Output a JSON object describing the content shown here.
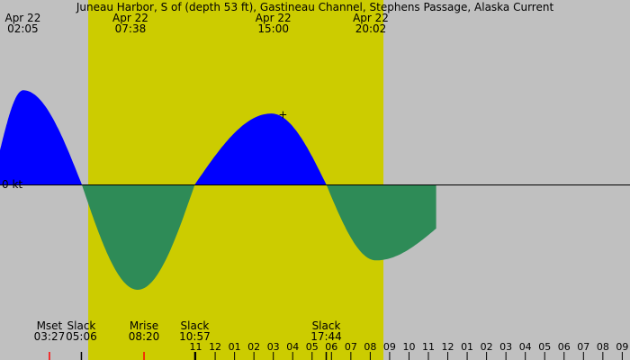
{
  "title": "Juneau Harbor, S of (depth 53 ft), Gastineau Channel, Stephens Passage, Alaska Current",
  "colors": {
    "background": "#c0c0c0",
    "daylight": "#cccc00",
    "flood": "#0000ff",
    "ebb": "#2e8b57",
    "zero_line": "#000000",
    "moon_tick": "#ff0000"
  },
  "chart_data": {
    "type": "area",
    "x_unit": "hour of day",
    "y_unit": "kt",
    "x_range": [
      0.9,
      33.4
    ],
    "y_range": [
      -4.4,
      4.4
    ],
    "zero_label": "0 kt",
    "daylight": [
      5.45,
      20.68
    ],
    "series": [
      {
        "kind": "flood",
        "x": [
          0.9,
          2.1,
          5.12
        ],
        "y": [
          1.4,
          3.85,
          0
        ]
      },
      {
        "kind": "ebb",
        "x": [
          5.12,
          8.0,
          10.95
        ],
        "y": [
          0,
          -4.3,
          0
        ]
      },
      {
        "kind": "flood",
        "x": [
          10.95,
          14.9,
          17.73
        ],
        "y": [
          0,
          2.9,
          0
        ]
      },
      {
        "kind": "ebb",
        "x": [
          17.73,
          20.3,
          23.4
        ],
        "y": [
          0,
          -3.1,
          -1.8
        ]
      }
    ],
    "top_labels": [
      {
        "date": "Apr 22",
        "time": "02:05",
        "x": 2.08
      },
      {
        "date": "Apr 22",
        "time": "07:38",
        "x": 7.63
      },
      {
        "date": "Apr 22",
        "time": "15:00",
        "x": 15.0
      },
      {
        "date": "Apr 22",
        "time": "20:02",
        "x": 20.03
      }
    ],
    "bottom_labels": [
      {
        "label": "Mset",
        "time": "03:27",
        "x": 3.45,
        "marker": "moon"
      },
      {
        "label": "Slack",
        "time": "05:06",
        "x": 5.1,
        "marker": "slack"
      },
      {
        "label": "Mrise",
        "time": "08:20",
        "x": 8.33,
        "marker": "moon"
      },
      {
        "label": "Slack",
        "time": "10:57",
        "x": 10.95,
        "marker": "slack"
      },
      {
        "label": "Slack",
        "time": "17:44",
        "x": 17.73,
        "marker": "slack"
      }
    ],
    "hour_ticks": {
      "x": [
        11,
        12,
        13,
        14,
        15,
        16,
        17,
        18,
        19,
        20,
        21,
        22,
        23,
        24,
        25,
        26,
        27,
        28,
        29,
        30,
        31,
        32,
        33
      ],
      "labels": [
        "11",
        "12",
        "01",
        "02",
        "03",
        "04",
        "05",
        "06",
        "07",
        "08",
        "09",
        "10",
        "11",
        "12",
        "01",
        "02",
        "03",
        "04",
        "05",
        "06",
        "07",
        "08",
        "09"
      ]
    },
    "current_marker": {
      "symbol": "+",
      "x": 15.5,
      "y": 2.85
    }
  }
}
